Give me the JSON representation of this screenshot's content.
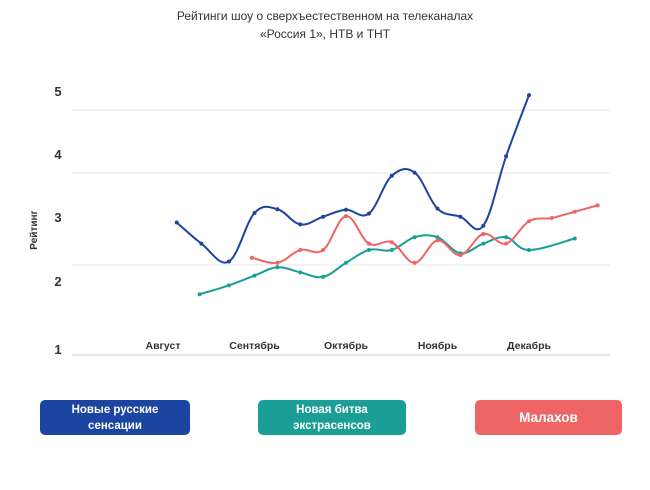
{
  "chart_data": {
    "type": "line",
    "title_lines": [
      "Рейтинги шоу о сверхъестественном на телеканалах",
      "«Россия 1»,  НТВ и ТНТ"
    ],
    "ylabel": "Рейтинг",
    "xlabel": "",
    "y_ticks": [
      1,
      2,
      3,
      4,
      5
    ],
    "ylim": [
      1,
      5
    ],
    "x_ticks": [
      "Август",
      "Сентябрь",
      "Октябрь",
      "Ноябрь",
      "Декабрь"
    ],
    "grid": true,
    "legend_placement": "bottom",
    "series": [
      {
        "name": "Новые русские сенсации",
        "color": "#1B45A0",
        "points": [
          {
            "x": 0.15,
            "y": 2.93
          },
          {
            "x": 0.42,
            "y": 2.6
          },
          {
            "x": 0.72,
            "y": 2.32
          },
          {
            "x": 1.0,
            "y": 3.08
          },
          {
            "x": 1.25,
            "y": 3.14
          },
          {
            "x": 1.5,
            "y": 2.9
          },
          {
            "x": 1.75,
            "y": 3.02
          },
          {
            "x": 2.0,
            "y": 3.13
          },
          {
            "x": 2.25,
            "y": 3.07
          },
          {
            "x": 2.5,
            "y": 3.67
          },
          {
            "x": 2.75,
            "y": 3.72
          },
          {
            "x": 3.0,
            "y": 3.15
          },
          {
            "x": 3.25,
            "y": 3.02
          },
          {
            "x": 3.5,
            "y": 2.88
          },
          {
            "x": 3.75,
            "y": 3.98
          },
          {
            "x": 4.0,
            "y": 4.95
          }
        ]
      },
      {
        "name": "Новая битва экстрасенсов",
        "color": "#1A9E96",
        "points": [
          {
            "x": 0.4,
            "y": 1.82
          },
          {
            "x": 0.72,
            "y": 1.95
          },
          {
            "x": 1.0,
            "y": 2.1
          },
          {
            "x": 1.25,
            "y": 2.23
          },
          {
            "x": 1.5,
            "y": 2.15
          },
          {
            "x": 1.75,
            "y": 2.08
          },
          {
            "x": 2.0,
            "y": 2.3
          },
          {
            "x": 2.25,
            "y": 2.5
          },
          {
            "x": 2.5,
            "y": 2.5
          },
          {
            "x": 2.75,
            "y": 2.7
          },
          {
            "x": 3.0,
            "y": 2.7
          },
          {
            "x": 3.25,
            "y": 2.45
          },
          {
            "x": 3.5,
            "y": 2.6
          },
          {
            "x": 3.75,
            "y": 2.7
          },
          {
            "x": 4.0,
            "y": 2.5
          },
          {
            "x": 4.5,
            "y": 2.68
          }
        ]
      },
      {
        "name": "Малахов",
        "color": "#EF6464",
        "points": [
          {
            "x": 0.97,
            "y": 2.38
          },
          {
            "x": 1.25,
            "y": 2.3
          },
          {
            "x": 1.5,
            "y": 2.5
          },
          {
            "x": 1.75,
            "y": 2.5
          },
          {
            "x": 2.0,
            "y": 3.03
          },
          {
            "x": 2.25,
            "y": 2.6
          },
          {
            "x": 2.5,
            "y": 2.62
          },
          {
            "x": 2.75,
            "y": 2.3
          },
          {
            "x": 3.0,
            "y": 2.65
          },
          {
            "x": 3.25,
            "y": 2.42
          },
          {
            "x": 3.5,
            "y": 2.75
          },
          {
            "x": 3.75,
            "y": 2.6
          },
          {
            "x": 4.0,
            "y": 2.95
          },
          {
            "x": 4.25,
            "y": 3.0
          },
          {
            "x": 4.5,
            "y": 3.1
          },
          {
            "x": 4.75,
            "y": 3.2
          }
        ]
      }
    ]
  }
}
